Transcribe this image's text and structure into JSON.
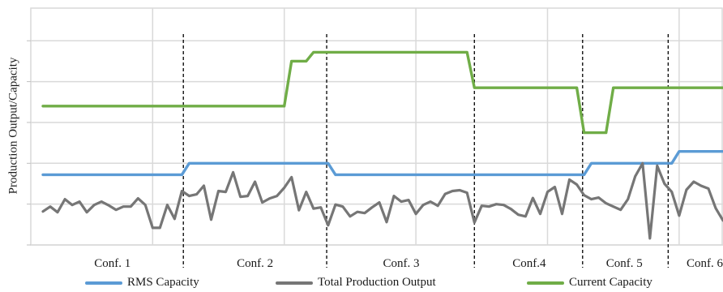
{
  "chart_data": {
    "type": "line",
    "ylabel": "Production  Output/Capacity",
    "xlabel": "",
    "x": [
      1,
      2,
      3,
      4,
      5,
      6,
      7,
      8,
      9,
      10,
      11,
      12,
      13,
      14,
      15,
      16,
      17,
      18,
      19,
      20,
      21,
      22,
      23,
      24,
      25,
      26,
      27,
      28,
      29,
      30,
      31,
      32,
      33,
      34,
      35,
      36,
      37,
      38,
      39,
      40,
      41,
      42,
      43,
      44,
      45,
      46,
      47,
      48,
      49,
      50,
      51,
      52,
      53,
      54,
      55,
      56,
      57,
      58,
      59,
      60,
      61,
      62,
      63,
      64,
      65,
      66,
      67,
      68,
      69,
      70,
      71,
      72,
      73,
      74,
      75,
      76,
      77,
      78,
      79,
      80,
      81,
      82,
      83,
      84,
      85,
      86,
      87,
      88,
      89,
      90,
      91,
      92,
      93,
      94
    ],
    "ylim": [
      0,
      5.8
    ],
    "grid": true,
    "legend_position": "bottom",
    "series": [
      {
        "name": "RMS Capacity",
        "color": "#5b9bd5",
        "values": [
          1.72,
          1.72,
          1.72,
          1.72,
          1.72,
          1.72,
          1.72,
          1.72,
          1.72,
          1.72,
          1.72,
          1.72,
          1.72,
          1.72,
          1.72,
          1.72,
          1.72,
          1.72,
          1.72,
          1.72,
          2.0,
          2.0,
          2.0,
          2.0,
          2.0,
          2.0,
          2.0,
          2.0,
          2.0,
          2.0,
          2.0,
          2.0,
          2.0,
          2.0,
          2.0,
          2.0,
          2.0,
          2.0,
          2.0,
          2.0,
          1.72,
          1.72,
          1.72,
          1.72,
          1.72,
          1.72,
          1.72,
          1.72,
          1.72,
          1.72,
          1.72,
          1.72,
          1.72,
          1.72,
          1.72,
          1.72,
          1.72,
          1.72,
          1.72,
          1.72,
          1.72,
          1.72,
          1.72,
          1.72,
          1.72,
          1.72,
          1.72,
          1.72,
          1.72,
          1.72,
          1.72,
          1.72,
          1.72,
          1.72,
          1.72,
          2.0,
          2.0,
          2.0,
          2.0,
          2.0,
          2.0,
          2.0,
          2.0,
          2.0,
          2.0,
          2.0,
          2.0,
          2.29,
          2.29,
          2.29,
          2.29,
          2.29,
          2.29,
          2.29
        ]
      },
      {
        "name": "Total Production Output",
        "color": "#767676",
        "values": [
          0.82,
          0.94,
          0.8,
          1.12,
          0.98,
          1.06,
          0.8,
          0.98,
          1.06,
          0.97,
          0.86,
          0.94,
          0.94,
          1.14,
          0.98,
          0.42,
          0.42,
          0.98,
          0.64,
          1.32,
          1.2,
          1.24,
          1.45,
          0.62,
          1.32,
          1.3,
          1.78,
          1.18,
          1.2,
          1.55,
          1.04,
          1.14,
          1.2,
          1.4,
          1.66,
          0.85,
          1.3,
          0.89,
          0.92,
          0.48,
          0.99,
          0.94,
          0.7,
          0.81,
          0.78,
          0.92,
          1.04,
          0.56,
          1.2,
          1.06,
          1.1,
          0.76,
          0.98,
          1.06,
          0.96,
          1.25,
          1.32,
          1.34,
          1.28,
          0.55,
          0.96,
          0.94,
          1.0,
          0.98,
          0.88,
          0.74,
          0.7,
          1.15,
          0.76,
          1.3,
          1.42,
          0.76,
          1.6,
          1.48,
          1.22,
          1.12,
          1.16,
          1.02,
          0.94,
          0.86,
          1.12,
          1.68,
          2.0,
          0.16,
          1.94,
          1.5,
          1.3,
          0.72,
          1.35,
          1.55,
          1.45,
          1.38,
          0.9,
          0.6
        ]
      },
      {
        "name": "Current Capacity",
        "color": "#70ad47",
        "values": [
          3.4,
          3.4,
          3.4,
          3.4,
          3.4,
          3.4,
          3.4,
          3.4,
          3.4,
          3.4,
          3.4,
          3.4,
          3.4,
          3.4,
          3.4,
          3.4,
          3.4,
          3.4,
          3.4,
          3.4,
          3.4,
          3.4,
          3.4,
          3.4,
          3.4,
          3.4,
          3.4,
          3.4,
          3.4,
          3.4,
          3.4,
          3.4,
          3.4,
          3.4,
          4.5,
          4.5,
          4.5,
          4.72,
          4.72,
          4.72,
          4.72,
          4.72,
          4.72,
          4.72,
          4.72,
          4.72,
          4.72,
          4.72,
          4.72,
          4.72,
          4.72,
          4.72,
          4.72,
          4.72,
          4.72,
          4.72,
          4.72,
          4.72,
          4.72,
          3.85,
          3.85,
          3.85,
          3.85,
          3.85,
          3.85,
          3.85,
          3.85,
          3.85,
          3.85,
          3.85,
          3.85,
          3.85,
          3.85,
          3.85,
          2.75,
          2.75,
          2.75,
          2.75,
          3.85,
          3.85,
          3.85,
          3.85,
          3.85,
          3.85,
          3.85,
          3.85,
          3.85,
          3.85,
          3.85,
          3.85,
          3.85,
          3.85,
          3.85,
          3.85
        ]
      }
    ],
    "dividers_x": [
      20.2,
      39.8,
      60.0,
      74.8,
      86.5
    ],
    "regions": [
      {
        "label": "Conf. 1",
        "x": 10.5
      },
      {
        "label": "Conf. 2",
        "x": 30.0
      },
      {
        "label": "Conf. 3",
        "x": 50.0
      },
      {
        "label": "Conf.4",
        "x": 67.5
      },
      {
        "label": "Conf. 5",
        "x": 80.5
      },
      {
        "label": "Conf. 6",
        "x": 91.5
      }
    ],
    "y_ticks": [
      0,
      1,
      2,
      3,
      4,
      5
    ],
    "x_gridlines": [
      16,
      34,
      52,
      70,
      88
    ]
  }
}
